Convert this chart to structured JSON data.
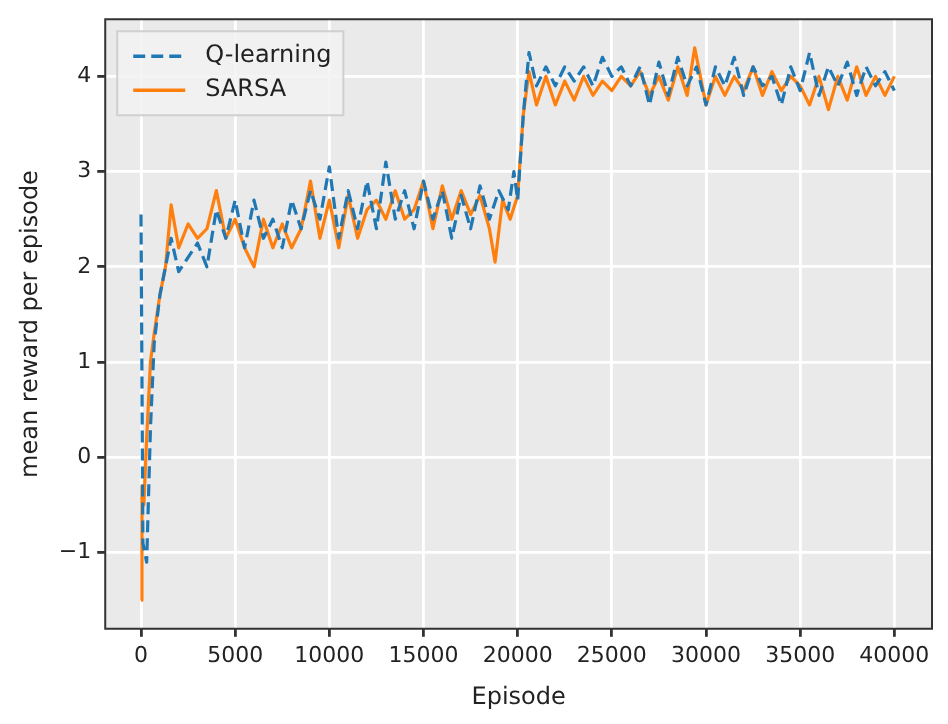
{
  "chart_data": {
    "type": "line",
    "xlabel": "Episode",
    "ylabel": "mean reward per episode",
    "xlim": [
      -1900,
      42000
    ],
    "xticks": [
      0,
      5000,
      10000,
      15000,
      20000,
      25000,
      30000,
      35000,
      40000
    ],
    "ylim": [
      -1.8,
      4.6
    ],
    "yticks": [
      -1,
      0,
      1,
      2,
      3,
      4
    ],
    "grid": true,
    "legend": "top left",
    "marker": "none",
    "series": [
      {
        "name": "Q-learning",
        "color": "#1f77b4",
        "line_style": "dashed",
        "x": [
          0,
          100,
          300,
          500,
          700,
          1000,
          1300,
          1600,
          2000,
          2500,
          3000,
          3500,
          4000,
          4500,
          5000,
          5500,
          6000,
          6500,
          7000,
          7500,
          8000,
          8500,
          9000,
          9500,
          10000,
          10500,
          11000,
          11500,
          12000,
          12500,
          13000,
          13500,
          14000,
          14500,
          15000,
          15500,
          16000,
          16500,
          17000,
          17500,
          18000,
          18500,
          19000,
          19500,
          19800,
          20000,
          20300,
          20600,
          21000,
          21500,
          22000,
          22500,
          23000,
          23500,
          24000,
          24500,
          25000,
          25500,
          26000,
          26500,
          27000,
          27500,
          28000,
          28500,
          29000,
          29500,
          30000,
          30500,
          31000,
          31500,
          32000,
          32500,
          33000,
          33500,
          34000,
          34500,
          35000,
          35500,
          36000,
          36500,
          37000,
          37500,
          38000,
          38500,
          39000,
          39500,
          40000
        ],
        "values": [
          2.55,
          -0.9,
          -1.1,
          0.3,
          1.2,
          1.7,
          2.0,
          2.3,
          1.95,
          2.1,
          2.25,
          2.0,
          2.6,
          2.3,
          2.7,
          2.2,
          2.7,
          2.3,
          2.5,
          2.2,
          2.7,
          2.4,
          2.8,
          2.5,
          3.05,
          2.3,
          2.8,
          2.4,
          2.9,
          2.4,
          3.1,
          2.5,
          2.8,
          2.4,
          2.9,
          2.5,
          2.8,
          2.3,
          2.75,
          2.4,
          2.85,
          2.5,
          2.8,
          2.6,
          3.0,
          2.7,
          3.6,
          4.25,
          3.9,
          4.1,
          3.9,
          4.1,
          3.95,
          4.1,
          3.9,
          4.2,
          4.0,
          4.1,
          3.9,
          4.1,
          3.7,
          4.15,
          3.8,
          4.2,
          3.9,
          4.1,
          3.7,
          4.1,
          3.9,
          4.2,
          3.8,
          4.1,
          3.9,
          4.0,
          3.7,
          4.1,
          3.85,
          4.25,
          3.8,
          4.1,
          3.9,
          4.15,
          3.8,
          4.1,
          3.9,
          4.05,
          3.85
        ]
      },
      {
        "name": "SARSA",
        "color": "#ff7f0e",
        "line_style": "solid",
        "x": [
          0,
          50,
          150,
          300,
          500,
          700,
          1000,
          1300,
          1600,
          2000,
          2500,
          3000,
          3500,
          4000,
          4500,
          5000,
          5500,
          6000,
          6500,
          7000,
          7500,
          8000,
          8500,
          9000,
          9500,
          10000,
          10500,
          11000,
          11500,
          12000,
          12500,
          13000,
          13500,
          14000,
          14500,
          15000,
          15500,
          16000,
          16500,
          17000,
          17500,
          18000,
          18500,
          18800,
          19200,
          19600,
          20000,
          20300,
          20600,
          21000,
          21500,
          22000,
          22500,
          23000,
          23500,
          24000,
          24500,
          25000,
          25500,
          26000,
          26500,
          27000,
          27500,
          28000,
          28500,
          29000,
          29400,
          30000,
          30500,
          31000,
          31500,
          32000,
          32500,
          33000,
          33500,
          34000,
          34500,
          35000,
          35500,
          36000,
          36500,
          37000,
          37500,
          38000,
          38500,
          39000,
          39500,
          40000
        ],
        "values": [
          -1.5,
          -0.3,
          -0.5,
          0.2,
          1.0,
          1.3,
          1.7,
          2.0,
          2.65,
          2.2,
          2.45,
          2.3,
          2.4,
          2.8,
          2.3,
          2.5,
          2.2,
          2.0,
          2.5,
          2.2,
          2.45,
          2.2,
          2.4,
          2.9,
          2.3,
          2.7,
          2.2,
          2.75,
          2.3,
          2.6,
          2.7,
          2.5,
          2.8,
          2.5,
          2.6,
          2.9,
          2.4,
          2.85,
          2.5,
          2.8,
          2.55,
          2.75,
          2.4,
          2.05,
          2.7,
          2.5,
          2.75,
          3.6,
          4.05,
          3.7,
          4.0,
          3.7,
          3.95,
          3.75,
          4.0,
          3.8,
          3.95,
          3.85,
          4.0,
          3.9,
          4.05,
          3.8,
          4.0,
          3.75,
          4.1,
          3.8,
          4.3,
          3.7,
          4.0,
          3.8,
          4.0,
          3.85,
          4.1,
          3.8,
          4.05,
          3.85,
          4.0,
          3.9,
          3.7,
          4.0,
          3.65,
          4.0,
          3.75,
          4.1,
          3.8,
          4.0,
          3.8,
          4.0
        ]
      }
    ]
  }
}
